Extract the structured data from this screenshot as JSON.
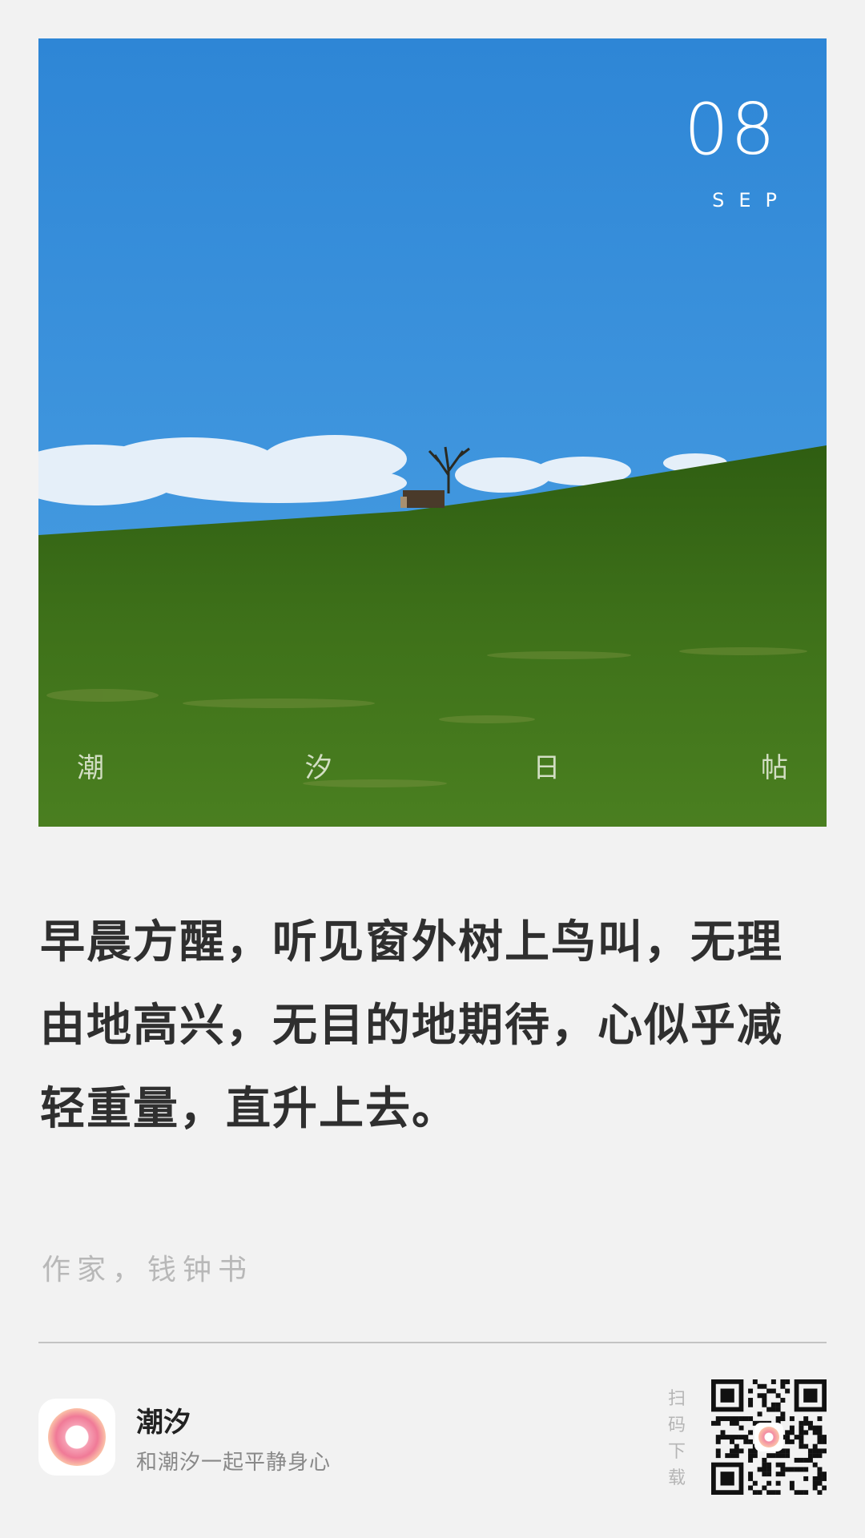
{
  "photo": {
    "date_day": "08",
    "date_month": "SEP",
    "brand_chars": [
      "潮",
      "汐",
      "日",
      "帖"
    ],
    "sky_color": "#3a8fd8",
    "grass_color": "#3e6e18"
  },
  "quote": {
    "lines": [
      "早晨方醒，听见窗外树上鸟叫，无理",
      "由地高兴，无目的地期待，心似乎减",
      "轻重量，直升上去。"
    ],
    "author": "作家，钱钟书"
  },
  "footer": {
    "app_name": "潮汐",
    "app_slogan": "和潮汐一起平静身心",
    "scan_label": "扫码下载",
    "icon": "tide-app-icon",
    "qr": "download-qr-code"
  }
}
